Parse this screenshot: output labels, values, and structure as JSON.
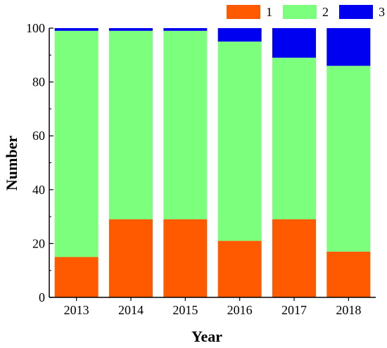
{
  "chart_data": {
    "type": "bar",
    "stacked": true,
    "categories": [
      "2013",
      "2014",
      "2015",
      "2016",
      "2017",
      "2018"
    ],
    "series": [
      {
        "name": "1",
        "color": "#FF5A00",
        "values": [
          15,
          29,
          29,
          21,
          29,
          17
        ]
      },
      {
        "name": "2",
        "color": "#7CFF7C",
        "values": [
          84,
          70,
          70,
          74,
          60,
          69
        ]
      },
      {
        "name": "3",
        "color": "#0000F0",
        "values": [
          1,
          1,
          1,
          5,
          11,
          14
        ]
      }
    ],
    "title": "",
    "xlabel": "Year",
    "ylabel": "Number",
    "ylim": [
      0,
      100
    ],
    "yticks": [
      "0",
      "20",
      "40",
      "60",
      "80",
      "100"
    ],
    "grid": false,
    "legend_position": "top-right"
  }
}
